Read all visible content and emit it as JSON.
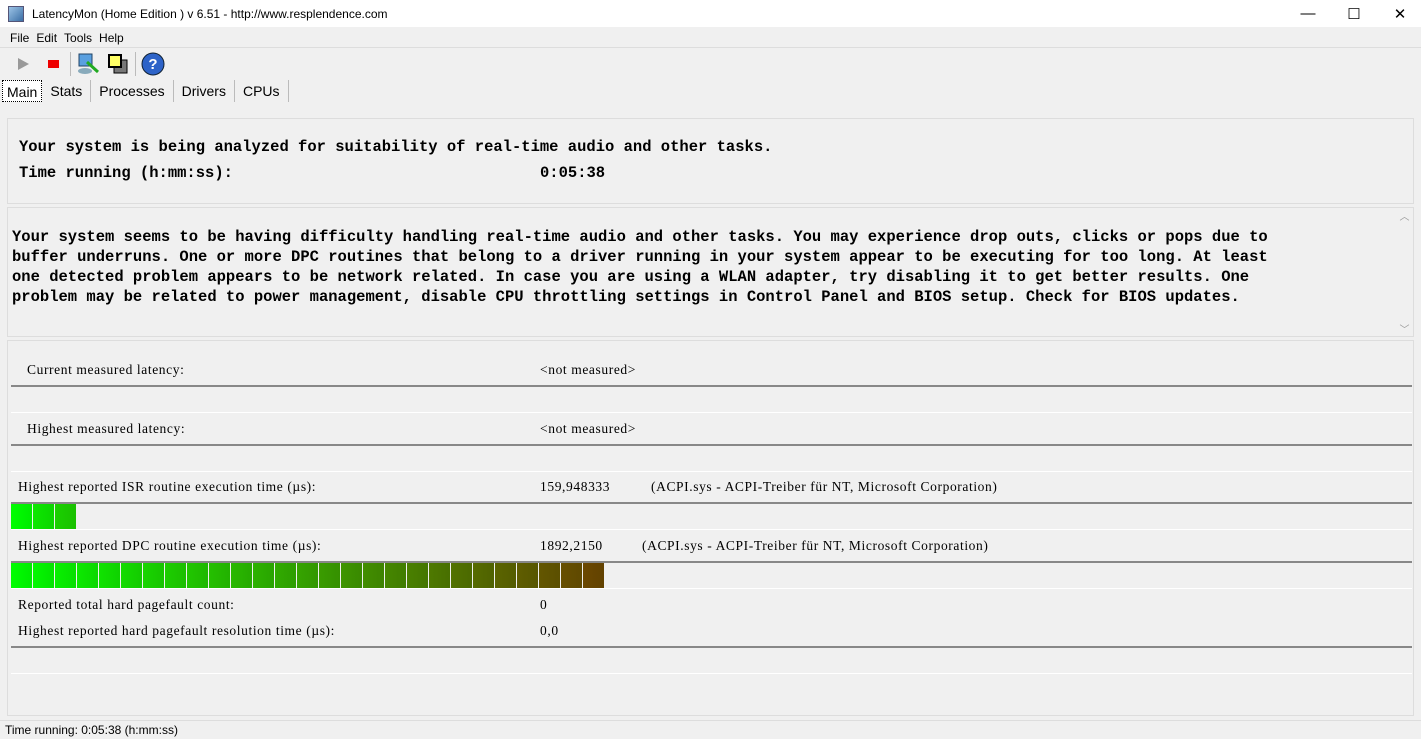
{
  "window": {
    "title": "LatencyMon  (Home Edition )  v 6.51 - http://www.resplendence.com",
    "minimize": "—",
    "maximize": "☐",
    "close": "✕"
  },
  "menu": [
    "File",
    "Edit",
    "Tools",
    "Help"
  ],
  "toolbar": {
    "icons": [
      "play-icon",
      "stop-icon",
      "analyze-icon",
      "windows-icon",
      "help-icon"
    ]
  },
  "tabs": [
    "Main",
    "Stats",
    "Processes",
    "Drivers",
    "CPUs"
  ],
  "summary": {
    "line1": "Your system is being analyzed for suitability of real-time audio and other tasks.",
    "time_label": "Time running (h:mm:ss):",
    "time_value": "0:05:38"
  },
  "conclusion": [
    "Your system seems to be having difficulty handling real-time audio and other tasks. You may experience drop outs, clicks or pops due to",
    "buffer underruns. One or more DPC routines that belong to a driver running in your system appear to be executing for too long. At least",
    "one detected problem appears to be network related. In case you are using a WLAN adapter, try disabling it to get better results. One",
    "problem may be related to power management, disable CPU throttling settings in Control Panel and BIOS setup. Check for BIOS updates."
  ],
  "metrics": {
    "current_label": "Current measured latency:",
    "current_value": "<not measured>",
    "highest_label": "Highest measured latency:",
    "highest_value": "<not measured>",
    "isr_label": "Highest reported ISR routine execution time (µs):",
    "isr_value": "159,948333",
    "isr_driver": "(ACPI.sys - ACPI-Treiber für NT, Microsoft Corporation)",
    "isr_bar_percent": 4.6,
    "dpc_label": "Highest reported DPC routine execution time (µs):",
    "dpc_value": "1892,2150",
    "dpc_driver": "(ACPI.sys - ACPI-Treiber für NT, Microsoft Corporation)",
    "dpc_bar_percent": 42,
    "pf_count_label": "Reported total hard pagefault count:",
    "pf_count_value": "0",
    "pf_time_label": "Highest reported hard pagefault resolution time (µs):",
    "pf_time_value": "0,0"
  },
  "status": "Time running: 0:05:38  (h:mm:ss)"
}
